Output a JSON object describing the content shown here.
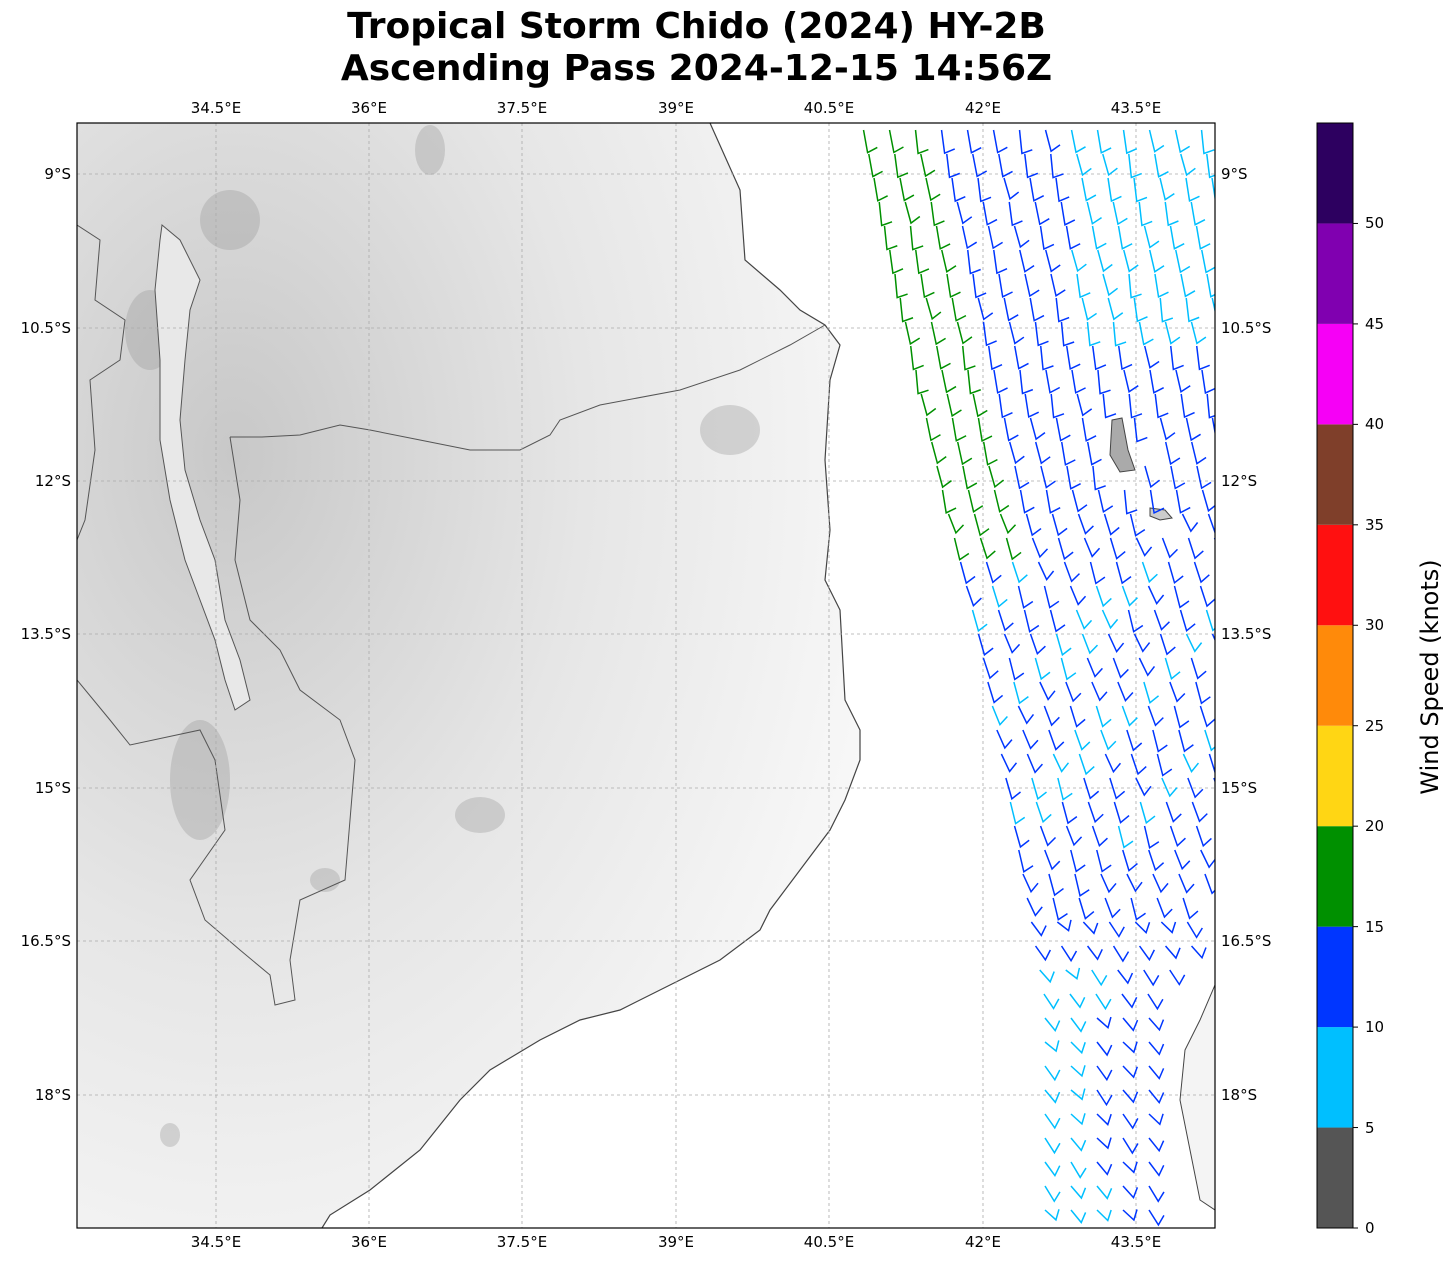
{
  "title": {
    "line1": "Tropical Storm Chido (2024) HY-2B",
    "line2": "Ascending Pass 2024-12-15 14:56Z"
  },
  "chart_data": {
    "type": "wind-barb-map",
    "lon_ticks": [
      "34.5°E",
      "36°E",
      "37.5°E",
      "39°E",
      "40.5°E",
      "42°E",
      "43.5°E"
    ],
    "lat_ticks": [
      "9°S",
      "10.5°S",
      "12°S",
      "13.5°S",
      "15°S",
      "16.5°S",
      "18°S"
    ],
    "lon_range": [
      33.14,
      44.27
    ],
    "lat_range": [
      -8.5,
      -19.3
    ],
    "grid": true,
    "colorbar": {
      "label": "Wind Speed (knots)",
      "ticks": [
        "0",
        "5",
        "10",
        "15",
        "20",
        "25",
        "30",
        "35",
        "40",
        "45",
        "50"
      ],
      "range": [
        0,
        55
      ],
      "bins": [
        {
          "from": 0,
          "to": 5,
          "color": "#555555"
        },
        {
          "from": 5,
          "to": 10,
          "color": "#00bfff"
        },
        {
          "from": 10,
          "to": 15,
          "color": "#0036ff"
        },
        {
          "from": 15,
          "to": 20,
          "color": "#009000"
        },
        {
          "from": 20,
          "to": 25,
          "color": "#ffd614"
        },
        {
          "from": 25,
          "to": 30,
          "color": "#ff8a0a"
        },
        {
          "from": 30,
          "to": 35,
          "color": "#ff1010"
        },
        {
          "from": 35,
          "to": 40,
          "color": "#7f3f2a"
        },
        {
          "from": 40,
          "to": 45,
          "color": "#f600f6"
        },
        {
          "from": 45,
          "to": 50,
          "color": "#8000b0"
        },
        {
          "from": 50,
          "to": 55,
          "color": "#2d0060"
        }
      ]
    }
  }
}
